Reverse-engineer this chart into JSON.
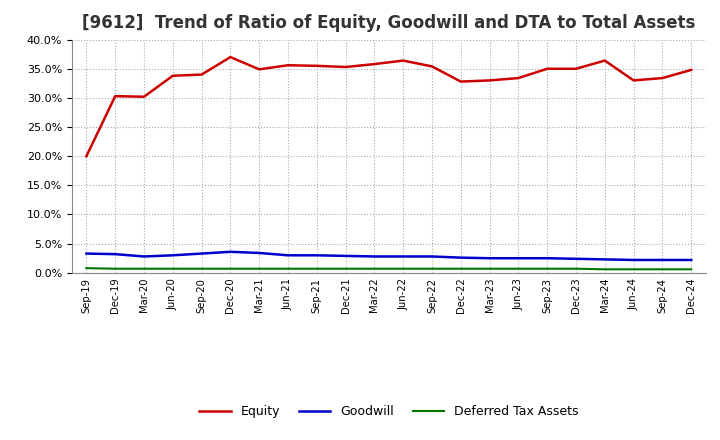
{
  "title": "[9612]  Trend of Ratio of Equity, Goodwill and DTA to Total Assets",
  "x_labels": [
    "Sep-19",
    "Dec-19",
    "Mar-20",
    "Jun-20",
    "Sep-20",
    "Dec-20",
    "Mar-21",
    "Jun-21",
    "Sep-21",
    "Dec-21",
    "Mar-22",
    "Jun-22",
    "Sep-22",
    "Dec-22",
    "Mar-23",
    "Jun-23",
    "Sep-23",
    "Dec-23",
    "Mar-24",
    "Jun-24",
    "Sep-24",
    "Dec-24"
  ],
  "equity": [
    0.2,
    0.303,
    0.302,
    0.338,
    0.34,
    0.37,
    0.349,
    0.356,
    0.355,
    0.353,
    0.358,
    0.364,
    0.354,
    0.328,
    0.33,
    0.334,
    0.35,
    0.35,
    0.364,
    0.33,
    0.334,
    0.348
  ],
  "goodwill": [
    0.033,
    0.032,
    0.028,
    0.03,
    0.033,
    0.036,
    0.034,
    0.03,
    0.03,
    0.029,
    0.028,
    0.028,
    0.028,
    0.026,
    0.025,
    0.025,
    0.025,
    0.024,
    0.023,
    0.022,
    0.022,
    0.022
  ],
  "dta": [
    0.008,
    0.007,
    0.007,
    0.007,
    0.007,
    0.007,
    0.007,
    0.007,
    0.007,
    0.007,
    0.007,
    0.007,
    0.007,
    0.007,
    0.007,
    0.007,
    0.007,
    0.007,
    0.006,
    0.006,
    0.006,
    0.006
  ],
  "equity_color": "#cc0000",
  "goodwill_color": "#0000cc",
  "dta_color": "#007700",
  "ylim": [
    0.0,
    0.4
  ],
  "yticks": [
    0.0,
    0.05,
    0.1,
    0.15,
    0.2,
    0.25,
    0.3,
    0.35,
    0.4
  ],
  "background_color": "#ffffff",
  "grid_color": "#aaaaaa",
  "title_fontsize": 12,
  "legend_labels": [
    "Equity",
    "Goodwill",
    "Deferred Tax Assets"
  ]
}
